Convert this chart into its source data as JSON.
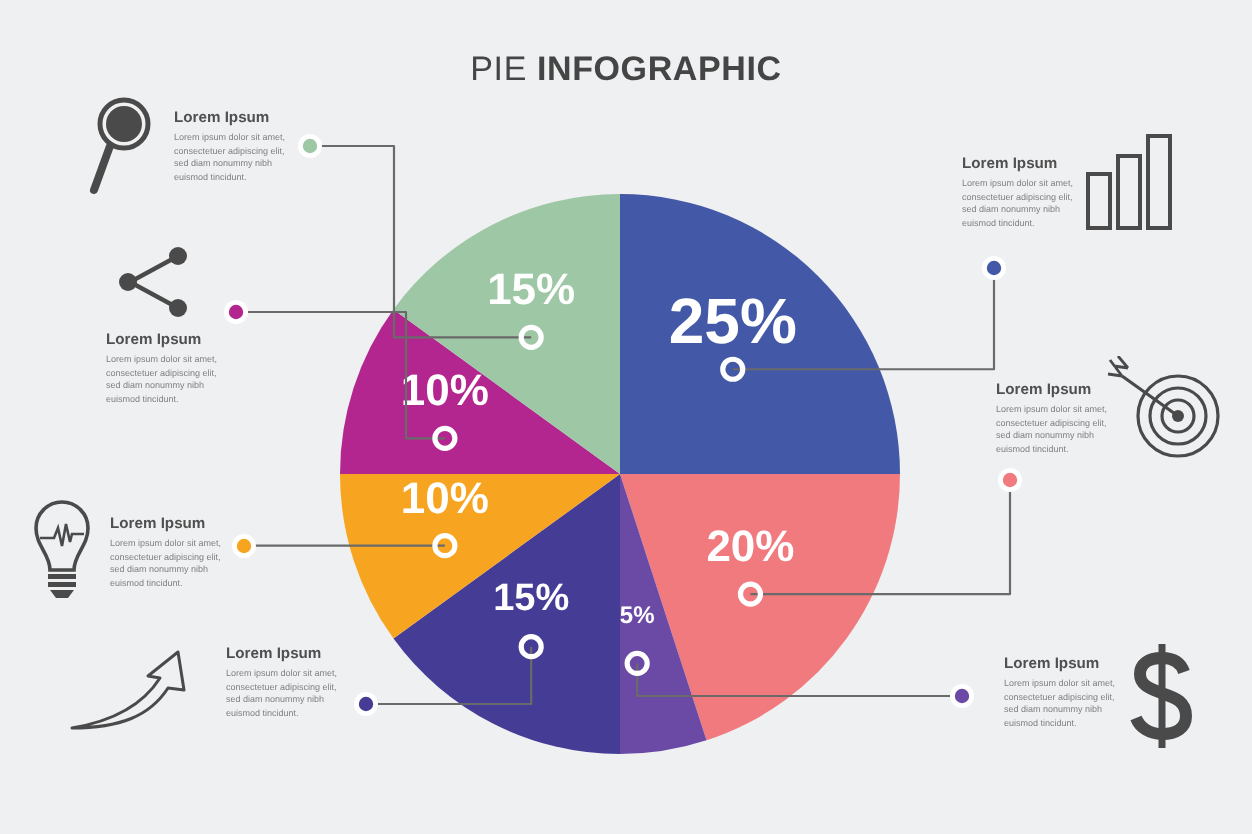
{
  "chart_data": {
    "type": "pie",
    "title": "PIE INFOGRAPHIC",
    "categories": [
      null,
      null,
      null,
      null,
      null,
      null,
      null
    ],
    "values": [
      25,
      20,
      5,
      15,
      10,
      10,
      15
    ],
    "colors": [
      "#4358a6",
      "#f07a7e",
      "#6b4aa6",
      "#453c96",
      "#f7a421",
      "#b3268f",
      "#9dc7a5"
    ],
    "value_labels": [
      "25%",
      "20%",
      "5%",
      "15%",
      "10%",
      "10%",
      "15%"
    ],
    "annotations": [
      "Lorem Ipsum",
      "Lorem ipsum dolor sit amet, consectetuer adipiscing elit, sed diam nonummy nibh euismod tincidunt.",
      "Lorem Ipsum",
      "Lorem ipsum dolor sit amet, consectetuer adipiscing elit, sed diam nonummy nibh euismod tincidunt.",
      "Lorem Ipsum",
      "Lorem ipsum dolor sit amet, consectetuer adipiscing elit, sed diam nonummy nibh euismod tincidunt.",
      "Lorem Ipsum",
      "Lorem ipsum dolor sit amet, consectetuer adipiscing elit, sed diam nonummy nibh euismod tincidunt.",
      "Lorem Ipsum",
      "Lorem ipsum dolor sit amet, consectetuer adipiscing elit, sed diam nonummy nibh euismod tincidunt.",
      "Lorem Ipsum",
      "Lorem ipsum dolor sit amet, consectetuer adipiscing elit, sed diam nonummy nibh euismod tincidunt.",
      "Lorem Ipsum",
      "Lorem ipsum dolor sit amet, consectetuer adipiscing elit, sed diam nonummy nibh euismod tincidunt."
    ]
  }
}
